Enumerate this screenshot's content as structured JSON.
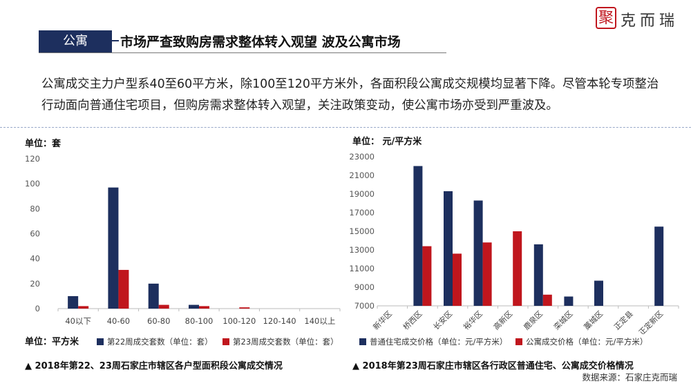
{
  "logo": {
    "mark": "聚",
    "text": "克而瑞"
  },
  "header": {
    "tag": "公寓",
    "title": "市场严查致购房需求整体转入观望 波及公寓市场"
  },
  "summary": "公寓成交主力户型系40至60平方米，除100至120平方米外，各面积段公寓成交规模均显著下降。尽管本轮专项整治行动面向普通住宅项目，但购房需求整体转入观望，关注政策变动，使公寓市场亦受到严重波及。",
  "left_chart": {
    "unit_top": "单位：套",
    "unit_bottom": "单位：平方米",
    "caption": "▲ 2018年第22、23周石家庄市辖区各户型面积段公寓成交情况"
  },
  "right_chart": {
    "unit_top": "单位：   元/平方米",
    "caption": "▲ 2018年第23周石家庄市辖区各行政区普通住宅、公寓成交价格情况"
  },
  "source": "数据来源：石家庄克而瑞",
  "colors": {
    "navy": "#1d2f5e",
    "red": "#c0161d"
  },
  "chart_data": [
    {
      "type": "bar",
      "categories": [
        "40以下",
        "40-60",
        "60-80",
        "80-100",
        "100-120",
        "120-140",
        "140以上"
      ],
      "series": [
        {
          "name": "第22周成交套数（单位：套）",
          "values": [
            10,
            97,
            20,
            3,
            0,
            0,
            0
          ],
          "color": "#1d2f5e"
        },
        {
          "name": "第23周成交套数（单位：套）",
          "values": [
            2,
            31,
            3,
            2,
            1,
            0,
            0
          ],
          "color": "#c0161d"
        }
      ],
      "ylim": [
        0,
        120
      ],
      "yticks": [
        0,
        20,
        40,
        60,
        80,
        100,
        120
      ],
      "legend": "bottom"
    },
    {
      "type": "bar",
      "categories": [
        "新华区",
        "桥西区",
        "长安区",
        "裕华区",
        "高新区",
        "鹿泉区",
        "栾城区",
        "藁城区",
        "正定县",
        "正定新区"
      ],
      "series": [
        {
          "name": "普通住宅成交价格（单位：元/平方米）",
          "values": [
            null,
            22000,
            19300,
            18300,
            null,
            13600,
            8000,
            9700,
            null,
            15500
          ],
          "color": "#1d2f5e"
        },
        {
          "name": "公寓成交价格（单位：元/平方米）",
          "values": [
            null,
            13400,
            12600,
            13800,
            15000,
            8200,
            null,
            null,
            null,
            null
          ],
          "color": "#c0161d"
        }
      ],
      "ylim": [
        7000,
        23000
      ],
      "yticks": [
        7000,
        9000,
        11000,
        13000,
        15000,
        17000,
        19000,
        21000,
        23000
      ],
      "legend": "bottom"
    }
  ]
}
